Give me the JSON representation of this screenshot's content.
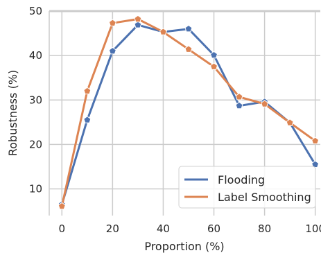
{
  "chart_data": {
    "type": "line",
    "title": "",
    "xlabel": "Proportion (%)",
    "ylabel": "Robustness (%)",
    "xlim": [
      -5,
      102
    ],
    "ylim": [
      4,
      50
    ],
    "xticks": [
      0,
      20,
      40,
      60,
      80,
      100
    ],
    "yticks": [
      10,
      20,
      30,
      40,
      50
    ],
    "grid": true,
    "legend": "lower-right",
    "x": [
      0,
      10,
      20,
      30,
      40,
      50,
      60,
      70,
      80,
      90,
      100
    ],
    "series": [
      {
        "name": "Flooding",
        "color": "#4c72b0",
        "values": [
          6.5,
          25.5,
          41.0,
          46.9,
          45.3,
          46.0,
          40.1,
          28.7,
          29.6,
          24.9,
          15.5
        ]
      },
      {
        "name": "Label Smoothing",
        "color": "#dd8452",
        "values": [
          6.1,
          32.0,
          47.3,
          48.2,
          45.3,
          41.4,
          37.5,
          30.7,
          29.1,
          24.9,
          20.8
        ]
      }
    ]
  }
}
